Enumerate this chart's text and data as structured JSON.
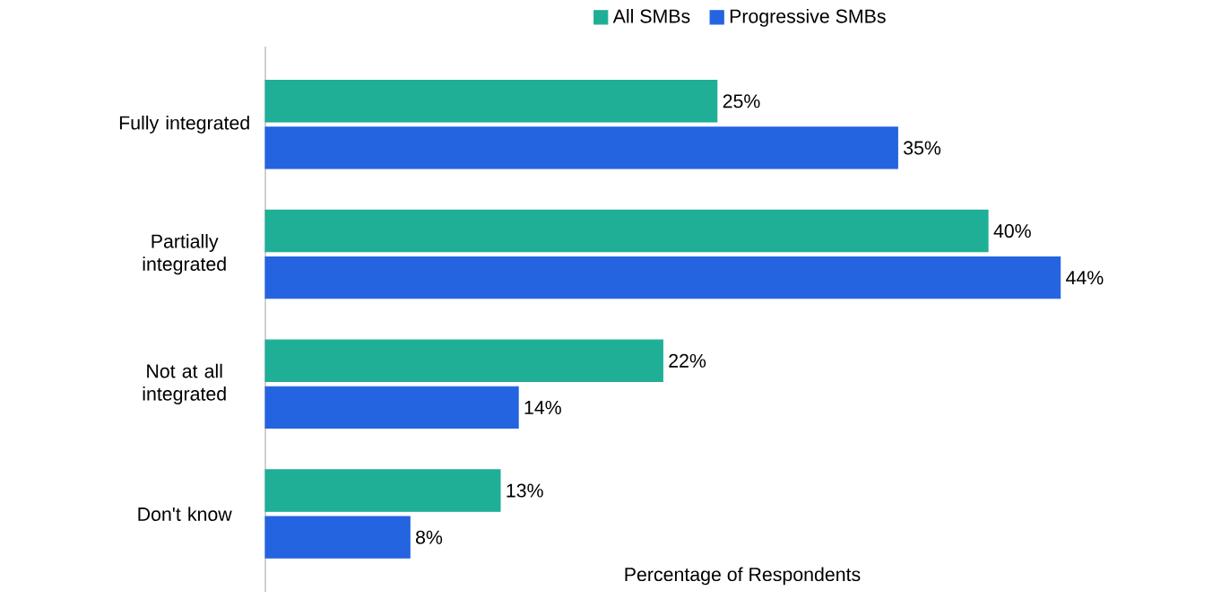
{
  "chart_data": {
    "type": "bar",
    "orientation": "horizontal",
    "xlabel": "Percentage of Respondents",
    "categories": [
      "Fully integrated",
      "Partially integrated",
      "Not at all integrated",
      "Don't know"
    ],
    "series": [
      {
        "name": "All SMBs",
        "color": "#1fae96",
        "values": [
          25,
          40,
          22,
          13
        ],
        "value_labels": [
          "25%",
          "40%",
          "22%",
          "13%"
        ]
      },
      {
        "name": "Progressive SMBs",
        "color": "#2464e0",
        "values": [
          35,
          44,
          14,
          8
        ],
        "value_labels": [
          "35%",
          "44%",
          "14%",
          "8%"
        ]
      }
    ],
    "tick_labels": "y",
    "legend": "top"
  }
}
